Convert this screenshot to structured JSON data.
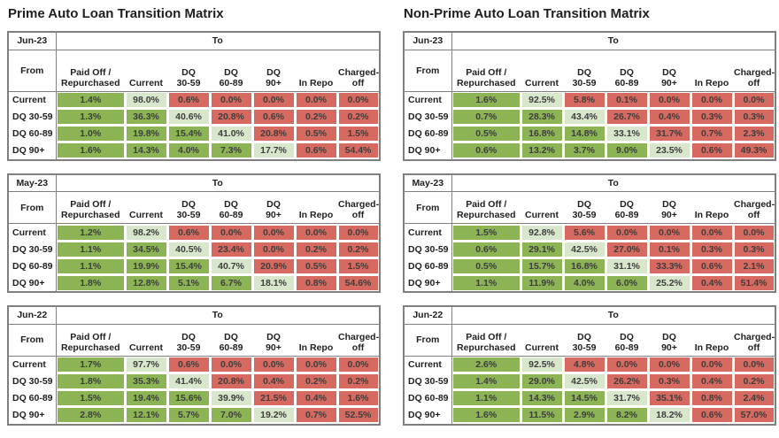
{
  "colors": {
    "transition_down_green": "#8CB455",
    "diagonal_light_green": "#D8E6CB",
    "transition_up_red": "#D66A60",
    "table_border": "#7F7F7F",
    "cell_text": "#3D3D3D",
    "title_text": "#1F1F1F"
  },
  "labels": {
    "to": "To",
    "from": "From"
  },
  "col_headers": [
    [
      "Paid Off /",
      "Repurchased"
    ],
    [
      "Current"
    ],
    [
      "DQ",
      "30-59"
    ],
    [
      "DQ",
      "60-89"
    ],
    [
      "DQ",
      "90+"
    ],
    [
      "In Repo"
    ],
    [
      "Charged-",
      "off"
    ]
  ],
  "sections": [
    {
      "title": "Prime Auto Loan Transition Matrix",
      "tables": [
        {
          "period": "Jun-23",
          "rows": [
            {
              "label": "Current",
              "values": [
                "1.4%",
                "98.0%",
                "0.6%",
                "0.0%",
                "0.0%",
                "0.0%",
                "0.0%"
              ]
            },
            {
              "label": "DQ 30-59",
              "values": [
                "1.3%",
                "36.3%",
                "40.6%",
                "20.8%",
                "0.6%",
                "0.2%",
                "0.2%"
              ]
            },
            {
              "label": "DQ 60-89",
              "values": [
                "1.0%",
                "19.8%",
                "15.4%",
                "41.0%",
                "20.8%",
                "0.5%",
                "1.5%"
              ]
            },
            {
              "label": "DQ 90+",
              "values": [
                "1.6%",
                "14.3%",
                "4.0%",
                "7.3%",
                "17.7%",
                "0.6%",
                "54.4%"
              ]
            }
          ]
        },
        {
          "period": "May-23",
          "rows": [
            {
              "label": "Current",
              "values": [
                "1.2%",
                "98.2%",
                "0.6%",
                "0.0%",
                "0.0%",
                "0.0%",
                "0.0%"
              ]
            },
            {
              "label": "DQ 30-59",
              "values": [
                "1.1%",
                "34.5%",
                "40.5%",
                "23.4%",
                "0.0%",
                "0.2%",
                "0.2%"
              ]
            },
            {
              "label": "DQ 60-89",
              "values": [
                "1.1%",
                "19.9%",
                "15.4%",
                "40.7%",
                "20.9%",
                "0.5%",
                "1.5%"
              ]
            },
            {
              "label": "DQ 90+",
              "values": [
                "1.8%",
                "12.8%",
                "5.1%",
                "6.7%",
                "18.1%",
                "0.8%",
                "54.6%"
              ]
            }
          ]
        },
        {
          "period": "Jun-22",
          "rows": [
            {
              "label": "Current",
              "values": [
                "1.7%",
                "97.7%",
                "0.6%",
                "0.0%",
                "0.0%",
                "0.0%",
                "0.0%"
              ]
            },
            {
              "label": "DQ 30-59",
              "values": [
                "1.8%",
                "35.3%",
                "41.4%",
                "20.8%",
                "0.4%",
                "0.2%",
                "0.2%"
              ]
            },
            {
              "label": "DQ 60-89",
              "values": [
                "1.5%",
                "19.4%",
                "15.6%",
                "39.9%",
                "21.5%",
                "0.4%",
                "1.6%"
              ]
            },
            {
              "label": "DQ 90+",
              "values": [
                "2.8%",
                "12.1%",
                "5.7%",
                "7.0%",
                "19.2%",
                "0.7%",
                "52.5%"
              ]
            }
          ]
        }
      ]
    },
    {
      "title": "Non-Prime Auto Loan Transition Matrix",
      "tables": [
        {
          "period": "Jun-23",
          "rows": [
            {
              "label": "Current",
              "values": [
                "1.6%",
                "92.5%",
                "5.8%",
                "0.1%",
                "0.0%",
                "0.0%",
                "0.0%"
              ]
            },
            {
              "label": "DQ 30-59",
              "values": [
                "0.7%",
                "28.3%",
                "43.4%",
                "26.7%",
                "0.4%",
                "0.3%",
                "0.3%"
              ]
            },
            {
              "label": "DQ 60-89",
              "values": [
                "0.5%",
                "16.8%",
                "14.8%",
                "33.1%",
                "31.7%",
                "0.7%",
                "2.3%"
              ]
            },
            {
              "label": "DQ 90+",
              "values": [
                "0.6%",
                "13.2%",
                "3.7%",
                "9.0%",
                "23.5%",
                "0.6%",
                "49.3%"
              ]
            }
          ]
        },
        {
          "period": "May-23",
          "rows": [
            {
              "label": "Current",
              "values": [
                "1.5%",
                "92.8%",
                "5.6%",
                "0.0%",
                "0.0%",
                "0.0%",
                "0.0%"
              ]
            },
            {
              "label": "DQ 30-59",
              "values": [
                "0.6%",
                "29.1%",
                "42.5%",
                "27.0%",
                "0.1%",
                "0.3%",
                "0.3%"
              ]
            },
            {
              "label": "DQ 60-89",
              "values": [
                "0.5%",
                "15.7%",
                "16.8%",
                "31.1%",
                "33.3%",
                "0.6%",
                "2.1%"
              ]
            },
            {
              "label": "DQ 90+",
              "values": [
                "1.1%",
                "11.9%",
                "4.0%",
                "6.0%",
                "25.2%",
                "0.4%",
                "51.4%"
              ]
            }
          ]
        },
        {
          "period": "Jun-22",
          "rows": [
            {
              "label": "Current",
              "values": [
                "2.6%",
                "92.5%",
                "4.8%",
                "0.0%",
                "0.0%",
                "0.0%",
                "0.0%"
              ]
            },
            {
              "label": "DQ 30-59",
              "values": [
                "1.4%",
                "29.0%",
                "42.5%",
                "26.2%",
                "0.3%",
                "0.4%",
                "0.2%"
              ]
            },
            {
              "label": "DQ 60-89",
              "values": [
                "1.1%",
                "14.3%",
                "14.5%",
                "31.7%",
                "35.1%",
                "0.8%",
                "2.4%"
              ]
            },
            {
              "label": "DQ 90+",
              "values": [
                "1.6%",
                "11.5%",
                "2.9%",
                "8.2%",
                "18.2%",
                "0.6%",
                "57.0%"
              ]
            }
          ]
        }
      ]
    }
  ]
}
